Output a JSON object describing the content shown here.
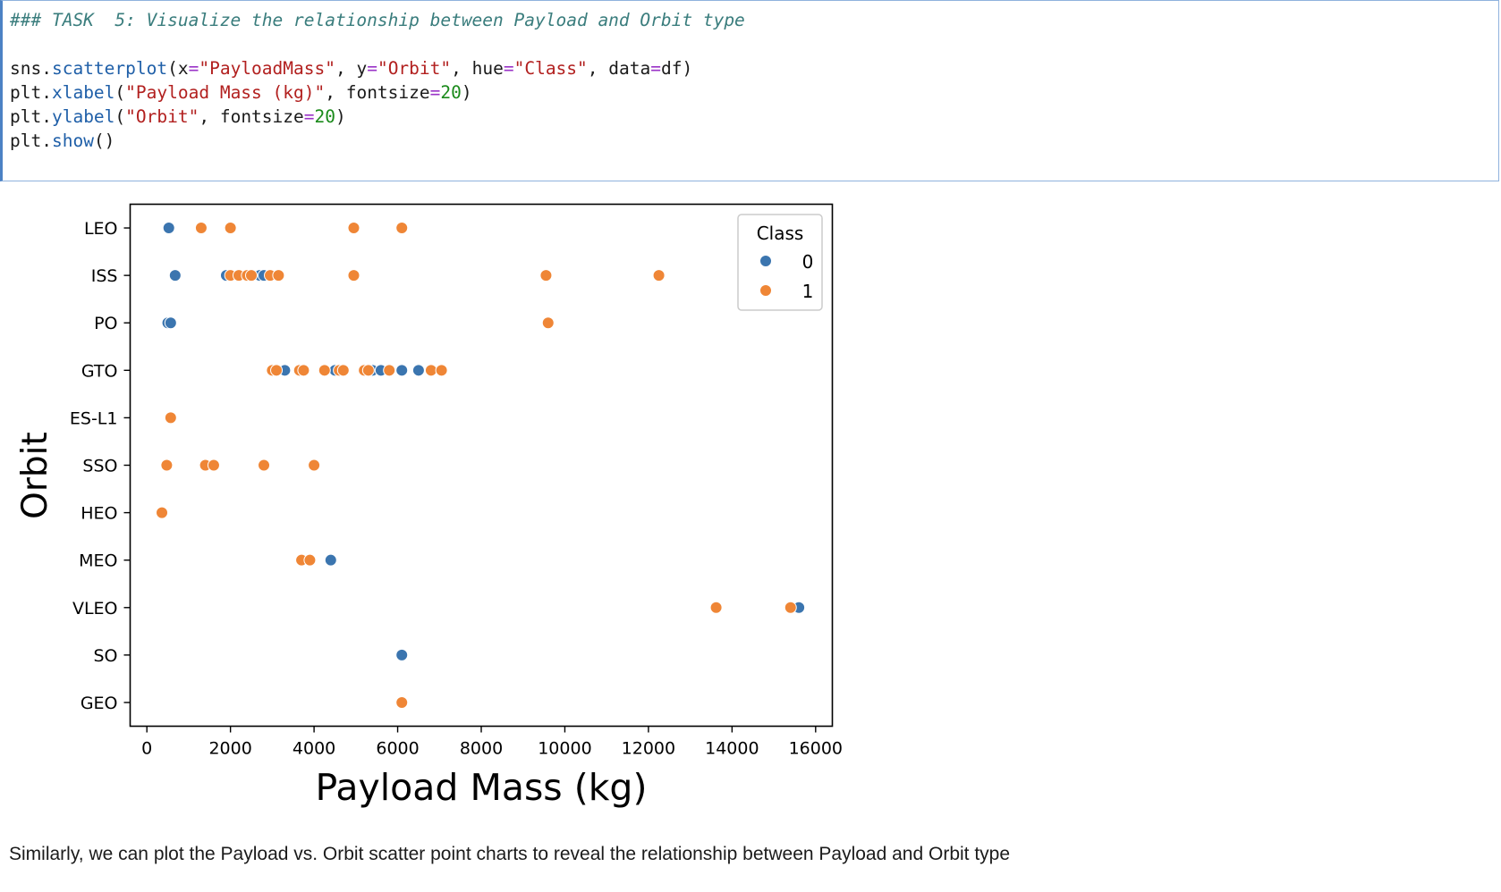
{
  "code_cell": {
    "comment": "### TASK  5: Visualize the relationship between Payload and Orbit type",
    "lines": [
      [
        {
          "t": "sns.",
          "c": ""
        },
        {
          "t": "scatterplot",
          "c": "fn"
        },
        {
          "t": "(x",
          "c": ""
        },
        {
          "t": "=",
          "c": "op"
        },
        {
          "t": "\"PayloadMass\"",
          "c": "st"
        },
        {
          "t": ", y",
          "c": ""
        },
        {
          "t": "=",
          "c": "op"
        },
        {
          "t": "\"Orbit\"",
          "c": "st"
        },
        {
          "t": ", hue",
          "c": ""
        },
        {
          "t": "=",
          "c": "op"
        },
        {
          "t": "\"Class\"",
          "c": "st"
        },
        {
          "t": ", data",
          "c": ""
        },
        {
          "t": "=",
          "c": "op"
        },
        {
          "t": "df)",
          "c": ""
        }
      ],
      [
        {
          "t": "plt.",
          "c": ""
        },
        {
          "t": "xlabel",
          "c": "fn"
        },
        {
          "t": "(",
          "c": ""
        },
        {
          "t": "\"Payload Mass (kg)\"",
          "c": "st"
        },
        {
          "t": ", fontsize",
          "c": ""
        },
        {
          "t": "=",
          "c": "op"
        },
        {
          "t": "20",
          "c": "nm"
        },
        {
          "t": ")",
          "c": ""
        }
      ],
      [
        {
          "t": "plt.",
          "c": ""
        },
        {
          "t": "ylabel",
          "c": "fn"
        },
        {
          "t": "(",
          "c": ""
        },
        {
          "t": "\"Orbit\"",
          "c": "st"
        },
        {
          "t": ", fontsize",
          "c": ""
        },
        {
          "t": "=",
          "c": "op"
        },
        {
          "t": "20",
          "c": "nm"
        },
        {
          "t": ")",
          "c": ""
        }
      ],
      [
        {
          "t": "plt.",
          "c": ""
        },
        {
          "t": "show",
          "c": "fn"
        },
        {
          "t": "()",
          "c": ""
        }
      ]
    ]
  },
  "chart_data": {
    "type": "scatter",
    "title": "",
    "xlabel": "Payload Mass (kg)",
    "ylabel": "Orbit",
    "xlim": [
      -400,
      16400
    ],
    "x_ticks": [
      0,
      2000,
      4000,
      6000,
      8000,
      10000,
      12000,
      14000,
      16000
    ],
    "y_categories": [
      "LEO",
      "ISS",
      "PO",
      "GTO",
      "ES-L1",
      "SSO",
      "HEO",
      "MEO",
      "VLEO",
      "SO",
      "GEO"
    ],
    "grid": false,
    "legend": {
      "title": "Class",
      "position": "top-right",
      "entries": [
        "0",
        "1"
      ]
    },
    "colors": {
      "0": "#3b75af",
      "1": "#ef8636"
    },
    "series": [
      {
        "name": "0",
        "points": [
          {
            "x": 525,
            "y": "LEO"
          },
          {
            "x": 677,
            "y": "ISS"
          },
          {
            "x": 1900,
            "y": "ISS"
          },
          {
            "x": 2700,
            "y": "ISS"
          },
          {
            "x": 2800,
            "y": "ISS"
          },
          {
            "x": 500,
            "y": "PO"
          },
          {
            "x": 570,
            "y": "PO"
          },
          {
            "x": 3300,
            "y": "GTO"
          },
          {
            "x": 4500,
            "y": "GTO"
          },
          {
            "x": 5400,
            "y": "GTO"
          },
          {
            "x": 5600,
            "y": "GTO"
          },
          {
            "x": 6100,
            "y": "GTO"
          },
          {
            "x": 6500,
            "y": "GTO"
          },
          {
            "x": 4400,
            "y": "MEO"
          },
          {
            "x": 15600,
            "y": "VLEO"
          },
          {
            "x": 6100,
            "y": "SO"
          }
        ]
      },
      {
        "name": "1",
        "points": [
          {
            "x": 1300,
            "y": "LEO"
          },
          {
            "x": 2000,
            "y": "LEO"
          },
          {
            "x": 4950,
            "y": "LEO"
          },
          {
            "x": 6100,
            "y": "LEO"
          },
          {
            "x": 2000,
            "y": "ISS"
          },
          {
            "x": 2200,
            "y": "ISS"
          },
          {
            "x": 2400,
            "y": "ISS"
          },
          {
            "x": 2500,
            "y": "ISS"
          },
          {
            "x": 2950,
            "y": "ISS"
          },
          {
            "x": 3150,
            "y": "ISS"
          },
          {
            "x": 4950,
            "y": "ISS"
          },
          {
            "x": 9550,
            "y": "ISS"
          },
          {
            "x": 12250,
            "y": "ISS"
          },
          {
            "x": 9600,
            "y": "PO"
          },
          {
            "x": 3000,
            "y": "GTO"
          },
          {
            "x": 3100,
            "y": "GTO"
          },
          {
            "x": 3650,
            "y": "GTO"
          },
          {
            "x": 3750,
            "y": "GTO"
          },
          {
            "x": 4250,
            "y": "GTO"
          },
          {
            "x": 4600,
            "y": "GTO"
          },
          {
            "x": 4700,
            "y": "GTO"
          },
          {
            "x": 5200,
            "y": "GTO"
          },
          {
            "x": 5300,
            "y": "GTO"
          },
          {
            "x": 5800,
            "y": "GTO"
          },
          {
            "x": 6800,
            "y": "GTO"
          },
          {
            "x": 7050,
            "y": "GTO"
          },
          {
            "x": 570,
            "y": "ES-L1"
          },
          {
            "x": 475,
            "y": "SSO"
          },
          {
            "x": 1400,
            "y": "SSO"
          },
          {
            "x": 1600,
            "y": "SSO"
          },
          {
            "x": 2800,
            "y": "SSO"
          },
          {
            "x": 4000,
            "y": "SSO"
          },
          {
            "x": 360,
            "y": "HEO"
          },
          {
            "x": 3700,
            "y": "MEO"
          },
          {
            "x": 3900,
            "y": "MEO"
          },
          {
            "x": 13620,
            "y": "VLEO"
          },
          {
            "x": 15400,
            "y": "VLEO"
          },
          {
            "x": 6100,
            "y": "GEO"
          }
        ]
      }
    ]
  },
  "markdown": {
    "text": "Similarly, we can plot the Payload vs. Orbit scatter point charts to reveal the relationship between Payload and Orbit type"
  }
}
